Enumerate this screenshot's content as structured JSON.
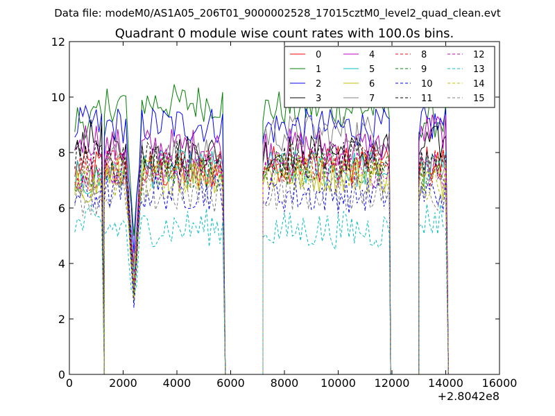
{
  "header": {
    "data_file": "Data file: modeM0/AS1A05_206T01_9000002528_17015cztM0_level2_quad_clean.evt"
  },
  "chart_data": {
    "type": "line",
    "title": "Quadrant 0 module wise count rates with 100.0s bins.",
    "xlabel": "",
    "ylabel": "",
    "x_offset_label": "+2.8042e8",
    "xlim": [
      0,
      16000
    ],
    "ylim": [
      0,
      12
    ],
    "xticks": [
      0,
      2000,
      4000,
      6000,
      8000,
      10000,
      12000,
      14000,
      16000
    ],
    "yticks": [
      0,
      2,
      4,
      6,
      8,
      10,
      12
    ],
    "legend_position": "top-right",
    "legend_columns": 4,
    "bin_width_s": 100,
    "segments": [
      {
        "start": 200,
        "end": 1300,
        "dips": []
      },
      {
        "start": 1300,
        "end": 5800,
        "dips": [
          2400
        ]
      },
      {
        "start": 7200,
        "end": 11950,
        "dips": []
      },
      {
        "start": 13000,
        "end": 14100,
        "dips": []
      }
    ],
    "series": [
      {
        "name": "0",
        "color": "#ff0000",
        "dash": "solid",
        "seg_levels": [
          7.5,
          7.3,
          7.6,
          7.6
        ]
      },
      {
        "name": "1",
        "color": "#008000",
        "dash": "solid",
        "seg_levels": [
          9.2,
          9.8,
          9.6,
          9.2
        ]
      },
      {
        "name": "2",
        "color": "#0000ff",
        "dash": "solid",
        "seg_levels": [
          9.0,
          9.0,
          8.9,
          9.0
        ]
      },
      {
        "name": "3",
        "color": "#000000",
        "dash": "solid",
        "seg_levels": [
          8.5,
          8.0,
          8.0,
          8.3
        ]
      },
      {
        "name": "4",
        "color": "#bf00bf",
        "dash": "solid",
        "seg_levels": [
          8.5,
          8.2,
          8.2,
          8.8
        ]
      },
      {
        "name": "5",
        "color": "#00bfbf",
        "dash": "solid",
        "seg_levels": [
          7.0,
          7.4,
          7.4,
          7.4
        ]
      },
      {
        "name": "6",
        "color": "#bfbf00",
        "dash": "solid",
        "seg_levels": [
          6.8,
          7.2,
          7.2,
          7.0
        ]
      },
      {
        "name": "7",
        "color": "#808080",
        "dash": "solid",
        "seg_levels": [
          7.2,
          7.8,
          8.7,
          7.6
        ]
      },
      {
        "name": "8",
        "color": "#ff0000",
        "dash": "dashed",
        "seg_levels": [
          7.3,
          7.4,
          7.6,
          7.5
        ]
      },
      {
        "name": "9",
        "color": "#008000",
        "dash": "dashed",
        "seg_levels": [
          7.0,
          7.3,
          7.4,
          7.2
        ]
      },
      {
        "name": "10",
        "color": "#0000ff",
        "dash": "dashed",
        "seg_levels": [
          6.5,
          6.6,
          6.5,
          6.5
        ]
      },
      {
        "name": "11",
        "color": "#000000",
        "dash": "dashed",
        "seg_levels": [
          7.8,
          7.8,
          7.7,
          7.8
        ]
      },
      {
        "name": "12",
        "color": "#bf00bf",
        "dash": "dashed",
        "seg_levels": [
          7.2,
          7.4,
          7.4,
          7.3
        ]
      },
      {
        "name": "13",
        "color": "#00bfbf",
        "dash": "dashed",
        "seg_levels": [
          5.4,
          5.3,
          5.2,
          5.6
        ]
      },
      {
        "name": "14",
        "color": "#bfbf00",
        "dash": "dashed",
        "seg_levels": [
          7.0,
          7.1,
          7.3,
          7.0
        ]
      },
      {
        "name": "15",
        "color": "#808080",
        "dash": "dashed",
        "seg_levels": [
          6.4,
          6.5,
          6.6,
          6.5
        ]
      }
    ]
  }
}
